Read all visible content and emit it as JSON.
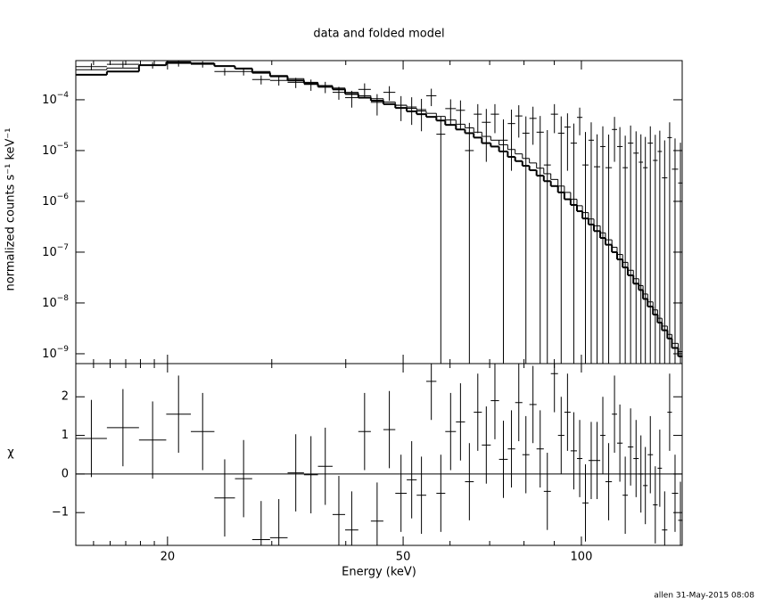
{
  "chart_data": {
    "type": "spectrum",
    "title": "data and folded model",
    "xlabel": "Energy (keV)",
    "xlog": true,
    "xlim": [
      14,
      148
    ],
    "xticks": [
      20,
      50,
      100
    ],
    "xminorticks": [
      15,
      16,
      17,
      18,
      19,
      30,
      40,
      60,
      70,
      80,
      90
    ],
    "footer": "allen 31-May-2015 08:08",
    "bins": [
      14,
      15.8,
      17.9,
      19.9,
      21.9,
      24.0,
      26.0,
      27.8,
      29.8,
      31.9,
      34.0,
      35.9,
      38.0,
      39.9,
      42.0,
      44.1,
      46.3,
      48.5,
      50.7,
      52.7,
      54.7,
      56.9,
      58.9,
      61.4,
      63.6,
      65.8,
      67.9,
      70.3,
      72.6,
      75.1,
      77.3,
      79.5,
      81.7,
      84.0,
      86.4,
      88.8,
      91.3,
      93.6,
      95.9,
      98.3,
      100.4,
      102.8,
      105.0,
      107.6,
      109.8,
      112.6,
      114.9,
      117.4,
      119.8,
      122.4,
      125.0,
      127.1,
      129.4,
      132.1,
      134.5,
      136.8,
      139.7,
      142.2,
      145.7,
      148.3
    ],
    "panels": [
      {
        "type": "errorbar",
        "ylabel": "normalized counts s⁻¹ keV⁻¹",
        "ylog": true,
        "ylim": [
          6.4e-10,
          0.00059
        ],
        "yticks": [
          {
            "value": 0.0001,
            "label": "10",
            "exponent": "−4"
          },
          {
            "value": 1e-05,
            "label": "10",
            "exponent": "−5"
          },
          {
            "value": 1e-06,
            "label": "10",
            "exponent": "−6"
          },
          {
            "value": 1e-07,
            "label": "10",
            "exponent": "−7"
          },
          {
            "value": 1e-08,
            "label": "10",
            "exponent": "−8"
          },
          {
            "value": 1e-09,
            "label": "10",
            "exponent": "−9"
          }
        ],
        "color": "#000000",
        "values": [
          0.00045,
          0.0005,
          0.00048,
          0.00052,
          0.0005,
          0.00036,
          0.00036,
          0.00025,
          0.00024,
          0.00022,
          0.0002,
          0.00018,
          0.00014,
          0.00011,
          0.00016,
          8.9e-05,
          0.00014,
          7.8e-05,
          7.2e-05,
          6.4e-05,
          0.00012,
          2.1e-05,
          6.7e-05,
          6.2e-05,
          1e-05,
          5.2e-05,
          3.6e-05,
          5.2e-05,
          1.6e-05,
          3.4e-05,
          4.8e-05,
          2.2e-05,
          4.3e-05,
          2.3e-05,
          5.2e-06,
          5.2e-05,
          2.2e-05,
          2.9e-05,
          1.4e-05,
          4.5e-05,
          5.2e-06,
          1.6e-05,
          4.8e-06,
          1.2e-05,
          4.6e-06,
          2.6e-05,
          1.2e-05,
          4.6e-06,
          1.4e-05,
          8.9e-06,
          5.9e-06,
          4.6e-06,
          1.4e-05,
          6.4e-06,
          9.6e-06,
          2.9e-06,
          1.8e-05,
          4.3e-06,
          2.3e-06
        ],
        "errors": [
          7e-05,
          7e-05,
          7e-05,
          7e-05,
          7e-05,
          6e-05,
          6e-05,
          5e-05,
          5e-05,
          5e-05,
          5e-05,
          4.5e-05,
          4e-05,
          4e-05,
          5e-05,
          4e-05,
          4.5e-05,
          4e-05,
          4e-05,
          4e-05,
          4.5e-05,
          2.5e-05,
          3.5e-05,
          3.5e-05,
          2.5e-05,
          3e-05,
          3e-05,
          3e-05,
          2.5e-05,
          3e-05,
          3e-05,
          2.5e-05,
          3e-05,
          2.5e-05,
          2e-05,
          3e-05,
          2.5e-05,
          2.5e-05,
          2e-05,
          2.5e-05,
          1.8e-05,
          2e-05,
          1.6e-05,
          1.8e-05,
          1.6e-05,
          2e-05,
          1.7e-05,
          1.5e-05,
          1.7e-05,
          1.5e-05,
          1.5e-05,
          1.4e-05,
          1.6e-05,
          1.4e-05,
          1.5e-05,
          1.3e-05,
          1.8e-05,
          1.3e-05,
          1.2e-05
        ],
        "models": [
          {
            "color": "#000000",
            "width": 2,
            "values": [
              0.00031,
              0.00036,
              0.00048,
              0.00055,
              0.00052,
              0.00046,
              0.00041,
              0.00034,
              0.00029,
              0.00024,
              0.00021,
              0.00018,
              0.00016,
              0.00013,
              0.00011,
              9.6e-05,
              8.2e-05,
              6.9e-05,
              5.9e-05,
              5.2e-05,
              4.6e-05,
              3.9e-05,
              3.2e-05,
              2.6e-05,
              2.2e-05,
              1.8e-05,
              1.4e-05,
              1.2e-05,
              9.6e-06,
              7.5e-06,
              6.2e-06,
              5e-06,
              4.1e-06,
              3.2e-06,
              2.5e-06,
              2e-06,
              1.5e-06,
              1.1e-06,
              8.5e-07,
              6.4e-07,
              4.6e-07,
              3.5e-07,
              2.6e-07,
              1.9e-07,
              1.4e-07,
              1e-07,
              7.2e-08,
              5e-08,
              3.5e-08,
              2.4e-08,
              1.8e-08,
              1.2e-08,
              8.5e-09,
              5.9e-09,
              4.1e-09,
              2.9e-09,
              2e-09,
              1.3e-09,
              8.9e-10
            ]
          },
          {
            "color": "#000000",
            "width": 1,
            "values": [
              0.00039,
              0.00042,
              0.00048,
              0.00055,
              0.00052,
              0.00046,
              0.00042,
              0.00036,
              0.0003,
              0.00026,
              0.00022,
              0.00019,
              0.00017,
              0.00014,
              0.00012,
              0.000105,
              9e-05,
              7.8e-05,
              6.8e-05,
              6e-05,
              5.4e-05,
              4.7e-05,
              4e-05,
              3.3e-05,
              2.8e-05,
              2.3e-05,
              1.9e-05,
              1.6e-05,
              1.3e-05,
              1.05e-05,
              8.6e-06,
              7e-06,
              5.7e-06,
              4.5e-06,
              3.5e-06,
              2.7e-06,
              2e-06,
              1.5e-06,
              1.1e-06,
              8.2e-07,
              6e-07,
              4.5e-07,
              3.3e-07,
              2.4e-07,
              1.75e-07,
              1.25e-07,
              9e-08,
              6.3e-08,
              4.4e-08,
              3e-08,
              2.2e-08,
              1.5e-08,
              1.05e-08,
              7.3e-09,
              5e-09,
              3.5e-09,
              2.4e-09,
              1.6e-09,
              1.1e-09
            ]
          }
        ]
      },
      {
        "type": "residual",
        "ylabel": "χ",
        "ylog": false,
        "ylim": [
          -1.85,
          2.86
        ],
        "yticks": [
          {
            "value": -1,
            "label": "−1"
          },
          0,
          1,
          2
        ],
        "color": "#000000",
        "reference_line": {
          "value": 0,
          "color": "#33cc33"
        },
        "values": [
          0.92,
          1.2,
          0.88,
          1.55,
          1.1,
          -0.62,
          -0.12,
          -1.7,
          -1.65,
          0.03,
          -0.02,
          0.2,
          -1.05,
          -1.45,
          1.1,
          -1.22,
          1.15,
          -0.5,
          -0.15,
          -0.55,
          2.4,
          -0.5,
          1.1,
          1.35,
          -0.2,
          1.6,
          0.75,
          1.9,
          0.38,
          0.65,
          1.85,
          0.5,
          1.8,
          0.65,
          -0.45,
          2.6,
          1.0,
          1.6,
          0.6,
          0.4,
          -0.75,
          0.35,
          0.35,
          1.0,
          -0.2,
          1.55,
          0.8,
          -0.55,
          0.7,
          0.4,
          0.0,
          -0.3,
          0.5,
          -0.8,
          0.15,
          -1.45,
          1.6,
          -0.5,
          -1.2
        ],
        "errors": [
          1,
          1,
          1,
          1,
          1,
          1,
          1,
          1,
          1,
          1,
          1,
          1,
          1,
          1,
          1,
          1,
          1,
          1,
          1,
          1,
          1,
          1,
          1,
          1,
          1,
          1,
          1,
          1,
          1,
          1,
          1,
          1,
          1,
          1,
          1,
          1,
          1,
          1,
          1,
          1,
          1,
          1,
          1,
          1,
          1,
          1,
          1,
          1,
          1,
          1,
          1,
          1,
          1,
          1,
          1,
          1,
          1,
          1,
          1
        ]
      }
    ]
  }
}
